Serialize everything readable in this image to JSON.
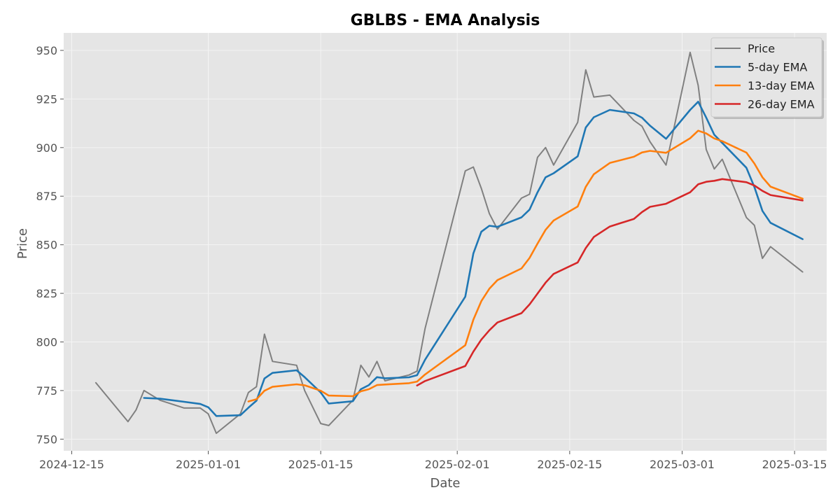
{
  "chart_data": {
    "type": "line",
    "title": "GBLBS - EMA Analysis",
    "xlabel": "Date",
    "ylabel": "Price",
    "x_ticks": [
      "2024-12-15",
      "2025-01-01",
      "2025-01-15",
      "2025-02-01",
      "2025-02-15",
      "2025-03-01",
      "2025-03-15"
    ],
    "y_ticks": [
      750,
      775,
      800,
      825,
      850,
      875,
      900,
      925,
      950
    ],
    "xlim": [
      "2024-12-14",
      "2025-03-19"
    ],
    "ylim": [
      744,
      959
    ],
    "grid": true,
    "legend_position": "top-right",
    "series": [
      {
        "name": "Price",
        "color": "#808080",
        "points": [
          [
            "2024-12-18",
            779
          ],
          [
            "2024-12-22",
            759
          ],
          [
            "2024-12-23",
            765
          ],
          [
            "2024-12-24",
            775
          ],
          [
            "2024-12-26",
            770
          ],
          [
            "2024-12-29",
            766
          ],
          [
            "2024-12-31",
            766
          ],
          [
            "2025-01-01",
            763
          ],
          [
            "2025-01-02",
            753
          ],
          [
            "2025-01-05",
            763
          ],
          [
            "2025-01-06",
            774
          ],
          [
            "2025-01-07",
            777
          ],
          [
            "2025-01-08",
            804
          ],
          [
            "2025-01-09",
            790
          ],
          [
            "2025-01-12",
            788
          ],
          [
            "2025-01-13",
            775
          ],
          [
            "2025-01-15",
            758
          ],
          [
            "2025-01-16",
            757
          ],
          [
            "2025-01-19",
            770
          ],
          [
            "2025-01-20",
            788
          ],
          [
            "2025-01-21",
            782
          ],
          [
            "2025-01-22",
            790
          ],
          [
            "2025-01-23",
            780
          ],
          [
            "2025-01-26",
            783
          ],
          [
            "2025-01-27",
            785
          ],
          [
            "2025-01-28",
            807
          ],
          [
            "2025-02-02",
            888
          ],
          [
            "2025-02-03",
            890
          ],
          [
            "2025-02-04",
            879
          ],
          [
            "2025-02-05",
            866
          ],
          [
            "2025-02-06",
            858
          ],
          [
            "2025-02-09",
            874
          ],
          [
            "2025-02-10",
            876
          ],
          [
            "2025-02-11",
            895
          ],
          [
            "2025-02-12",
            900
          ],
          [
            "2025-02-13",
            891
          ],
          [
            "2025-02-16",
            913
          ],
          [
            "2025-02-17",
            940
          ],
          [
            "2025-02-18",
            926
          ],
          [
            "2025-02-20",
            927
          ],
          [
            "2025-02-23",
            914
          ],
          [
            "2025-02-24",
            911
          ],
          [
            "2025-02-25",
            903
          ],
          [
            "2025-02-27",
            891
          ],
          [
            "2025-03-02",
            949
          ],
          [
            "2025-03-03",
            932
          ],
          [
            "2025-03-04",
            899
          ],
          [
            "2025-03-05",
            889
          ],
          [
            "2025-03-06",
            894
          ],
          [
            "2025-03-09",
            864
          ],
          [
            "2025-03-10",
            860
          ],
          [
            "2025-03-11",
            843
          ],
          [
            "2025-03-12",
            849
          ],
          [
            "2025-03-16",
            836
          ]
        ]
      },
      {
        "name": "5-day EMA",
        "color": "#1f77b4",
        "points": [
          [
            "2024-12-24",
            771.2
          ],
          [
            "2024-12-26",
            770.8
          ],
          [
            "2024-12-29",
            769.2
          ],
          [
            "2024-12-31",
            768.1
          ],
          [
            "2025-01-01",
            766.4
          ],
          [
            "2025-01-02",
            761.9
          ],
          [
            "2025-01-05",
            762.3
          ],
          [
            "2025-01-06",
            766.2
          ],
          [
            "2025-01-07",
            769.8
          ],
          [
            "2025-01-08",
            781.2
          ],
          [
            "2025-01-09",
            784.1
          ],
          [
            "2025-01-12",
            785.4
          ],
          [
            "2025-01-13",
            781.9
          ],
          [
            "2025-01-15",
            774.0
          ],
          [
            "2025-01-16",
            768.3
          ],
          [
            "2025-01-19",
            769.5
          ],
          [
            "2025-01-20",
            775.7
          ],
          [
            "2025-01-21",
            777.8
          ],
          [
            "2025-01-22",
            781.9
          ],
          [
            "2025-01-23",
            781.3
          ],
          [
            "2025-01-26",
            781.8
          ],
          [
            "2025-01-27",
            782.9
          ],
          [
            "2025-01-28",
            790.9
          ],
          [
            "2025-02-02",
            823.3
          ],
          [
            "2025-02-03",
            845.5
          ],
          [
            "2025-02-04",
            856.7
          ],
          [
            "2025-02-05",
            859.8
          ],
          [
            "2025-02-06",
            859.2
          ],
          [
            "2025-02-09",
            864.1
          ],
          [
            "2025-02-10",
            868.1
          ],
          [
            "2025-02-11",
            877.0
          ],
          [
            "2025-02-12",
            884.7
          ],
          [
            "2025-02-13",
            886.8
          ],
          [
            "2025-02-16",
            895.5
          ],
          [
            "2025-02-17",
            910.3
          ],
          [
            "2025-02-18",
            915.6
          ],
          [
            "2025-02-20",
            919.4
          ],
          [
            "2025-02-23",
            917.6
          ],
          [
            "2025-02-24",
            915.4
          ],
          [
            "2025-02-25",
            911.3
          ],
          [
            "2025-02-27",
            904.5
          ],
          [
            "2025-03-02",
            919.4
          ],
          [
            "2025-03-03",
            923.6
          ],
          [
            "2025-03-04",
            915.4
          ],
          [
            "2025-03-05",
            906.6
          ],
          [
            "2025-03-06",
            902.4
          ],
          [
            "2025-03-09",
            889.6
          ],
          [
            "2025-03-10",
            879.7
          ],
          [
            "2025-03-11",
            867.4
          ],
          [
            "2025-03-12",
            861.3
          ],
          [
            "2025-03-16",
            852.9
          ]
        ]
      },
      {
        "name": "13-day EMA",
        "color": "#ff7f0e",
        "points": [
          [
            "2025-01-06",
            769.4
          ],
          [
            "2025-01-07",
            770.5
          ],
          [
            "2025-01-08",
            774.9
          ],
          [
            "2025-01-09",
            776.9
          ],
          [
            "2025-01-12",
            778.2
          ],
          [
            "2025-01-13",
            777.7
          ],
          [
            "2025-01-15",
            774.9
          ],
          [
            "2025-01-16",
            772.4
          ],
          [
            "2025-01-19",
            772.1
          ],
          [
            "2025-01-20",
            774.6
          ],
          [
            "2025-01-21",
            775.7
          ],
          [
            "2025-01-22",
            777.8
          ],
          [
            "2025-01-23",
            778.1
          ],
          [
            "2025-01-26",
            778.8
          ],
          [
            "2025-01-27",
            779.6
          ],
          [
            "2025-01-28",
            783.3
          ],
          [
            "2025-02-02",
            798.3
          ],
          [
            "2025-02-03",
            811.4
          ],
          [
            "2025-02-04",
            821.0
          ],
          [
            "2025-02-05",
            827.4
          ],
          [
            "2025-02-06",
            831.8
          ],
          [
            "2025-02-09",
            837.8
          ],
          [
            "2025-02-10",
            843.2
          ],
          [
            "2025-02-11",
            850.6
          ],
          [
            "2025-02-12",
            857.7
          ],
          [
            "2025-02-13",
            862.5
          ],
          [
            "2025-02-16",
            869.7
          ],
          [
            "2025-02-17",
            879.8
          ],
          [
            "2025-02-18",
            886.3
          ],
          [
            "2025-02-20",
            892.1
          ],
          [
            "2025-02-23",
            895.3
          ],
          [
            "2025-02-24",
            897.5
          ],
          [
            "2025-02-25",
            898.3
          ],
          [
            "2025-02-27",
            897.3
          ],
          [
            "2025-03-02",
            904.8
          ],
          [
            "2025-03-03",
            908.7
          ],
          [
            "2025-03-04",
            907.3
          ],
          [
            "2025-03-05",
            904.7
          ],
          [
            "2025-03-06",
            903.3
          ],
          [
            "2025-03-09",
            897.4
          ],
          [
            "2025-03-10",
            891.8
          ],
          [
            "2025-03-11",
            884.7
          ],
          [
            "2025-03-12",
            879.9
          ],
          [
            "2025-03-16",
            873.7
          ]
        ]
      },
      {
        "name": "26-day EMA",
        "color": "#d62728",
        "points": [
          [
            "2025-01-27",
            777.6
          ],
          [
            "2025-01-28",
            779.9
          ],
          [
            "2025-02-02",
            787.6
          ],
          [
            "2025-02-03",
            795.0
          ],
          [
            "2025-02-04",
            801.2
          ],
          [
            "2025-02-05",
            806.0
          ],
          [
            "2025-02-06",
            810.0
          ],
          [
            "2025-02-09",
            814.8
          ],
          [
            "2025-02-10",
            819.3
          ],
          [
            "2025-02-11",
            824.9
          ],
          [
            "2025-02-12",
            830.5
          ],
          [
            "2025-02-13",
            835.0
          ],
          [
            "2025-02-16",
            840.9
          ],
          [
            "2025-02-17",
            848.3
          ],
          [
            "2025-02-18",
            854.0
          ],
          [
            "2025-02-20",
            859.4
          ],
          [
            "2025-02-23",
            863.3
          ],
          [
            "2025-02-24",
            866.8
          ],
          [
            "2025-02-25",
            869.5
          ],
          [
            "2025-02-27",
            871.1
          ],
          [
            "2025-03-02",
            877.0
          ],
          [
            "2025-03-03",
            881.1
          ],
          [
            "2025-03-04",
            882.4
          ],
          [
            "2025-03-05",
            882.9
          ],
          [
            "2025-03-06",
            883.8
          ],
          [
            "2025-03-09",
            882.2
          ],
          [
            "2025-03-10",
            880.5
          ],
          [
            "2025-03-11",
            877.7
          ],
          [
            "2025-03-12",
            875.6
          ],
          [
            "2025-03-16",
            872.8
          ]
        ]
      }
    ]
  }
}
